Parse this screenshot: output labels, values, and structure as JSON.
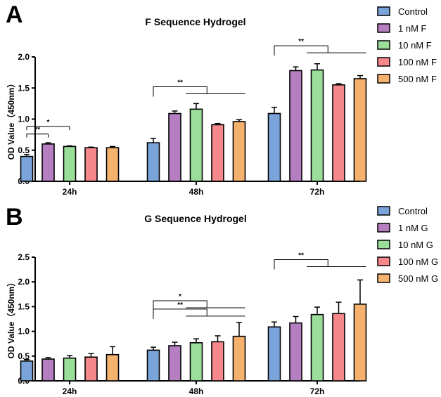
{
  "colors": {
    "Control": "#7AA3D9",
    "c1": "#B57EC0",
    "c10": "#9ADE9A",
    "c100": "#F6878A",
    "c500": "#F4B26E",
    "axis": "#000000"
  },
  "chart_data": [
    {
      "type": "bar",
      "panel_label": "A",
      "title": "F Sequence Hydrogel",
      "ylabel": "OD Value（450nm）",
      "xlabel": "",
      "ylim": [
        0,
        2.0
      ],
      "yticks": [
        "0.0",
        "0.5",
        "1.0",
        "1.5",
        "2.0"
      ],
      "ytick_values": [
        0,
        0.5,
        1.0,
        1.5,
        2.0
      ],
      "categories": [
        "24h",
        "48h",
        "72h"
      ],
      "legend_position": "right",
      "series": [
        {
          "name": "Control",
          "color_key": "Control",
          "values": [
            0.4,
            0.62,
            1.09
          ],
          "errors": [
            0.03,
            0.07,
            0.1
          ]
        },
        {
          "name": "1 nM F",
          "color_key": "c1",
          "values": [
            0.6,
            1.09,
            1.78
          ],
          "errors": [
            0.02,
            0.04,
            0.06
          ]
        },
        {
          "name": "10 nM F",
          "color_key": "c10",
          "values": [
            0.56,
            1.16,
            1.79
          ],
          "errors": [
            0.01,
            0.09,
            0.1
          ]
        },
        {
          "name": "100 nM F",
          "color_key": "c100",
          "values": [
            0.54,
            0.91,
            1.55
          ],
          "errors": [
            0.01,
            0.02,
            0.02
          ]
        },
        {
          "name": "500 nM F",
          "color_key": "c500",
          "values": [
            0.54,
            0.96,
            1.65
          ],
          "errors": [
            0.02,
            0.03,
            0.05
          ]
        }
      ],
      "significance": [
        {
          "category": 0,
          "from": 0,
          "to": 1,
          "label": "**",
          "y": 0.76,
          "type": "step"
        },
        {
          "category": 0,
          "from": 0,
          "to": 2,
          "label": "*",
          "y": 0.88,
          "type": "step"
        },
        {
          "category": 1,
          "from": 0,
          "to": 2,
          "label": "**",
          "y": 1.52,
          "type": "group"
        },
        {
          "category": 2,
          "from": 0,
          "to": 2,
          "label": "**",
          "y": 2.18,
          "type": "group"
        }
      ]
    },
    {
      "type": "bar",
      "panel_label": "B",
      "title": "G Sequence Hydrogel",
      "ylabel": "OD Value（450nm）",
      "xlabel": "",
      "ylim": [
        0,
        2.5
      ],
      "yticks": [
        "0.0",
        "0.5",
        "1.0",
        "1.5",
        "2.0",
        "2.5"
      ],
      "ytick_values": [
        0,
        0.5,
        1.0,
        1.5,
        2.0,
        2.5
      ],
      "categories": [
        "24h",
        "48h",
        "72h"
      ],
      "legend_position": "right",
      "series": [
        {
          "name": "Control",
          "color_key": "Control",
          "values": [
            0.4,
            0.62,
            1.09
          ],
          "errors": [
            0.03,
            0.06,
            0.1
          ]
        },
        {
          "name": "1 nM G",
          "color_key": "c1",
          "values": [
            0.44,
            0.71,
            1.17
          ],
          "errors": [
            0.03,
            0.07,
            0.13
          ]
        },
        {
          "name": "10 nM G",
          "color_key": "c10",
          "values": [
            0.46,
            0.77,
            1.34
          ],
          "errors": [
            0.05,
            0.08,
            0.15
          ]
        },
        {
          "name": "100 nM G",
          "color_key": "c100",
          "values": [
            0.48,
            0.79,
            1.36
          ],
          "errors": [
            0.07,
            0.12,
            0.23
          ]
        },
        {
          "name": "500 nM G",
          "color_key": "c500",
          "values": [
            0.53,
            0.9,
            1.55
          ],
          "errors": [
            0.16,
            0.28,
            0.49
          ]
        }
      ],
      "significance": [
        {
          "category": 1,
          "from": 0,
          "to": 2,
          "label": "**",
          "y": 1.45,
          "type": "group"
        },
        {
          "category": 1,
          "from": 0,
          "to": 4,
          "label": "*",
          "y": 1.62,
          "type": "group"
        },
        {
          "category": 2,
          "from": 0,
          "to": 2,
          "label": "**",
          "y": 2.45,
          "type": "group"
        }
      ]
    }
  ]
}
